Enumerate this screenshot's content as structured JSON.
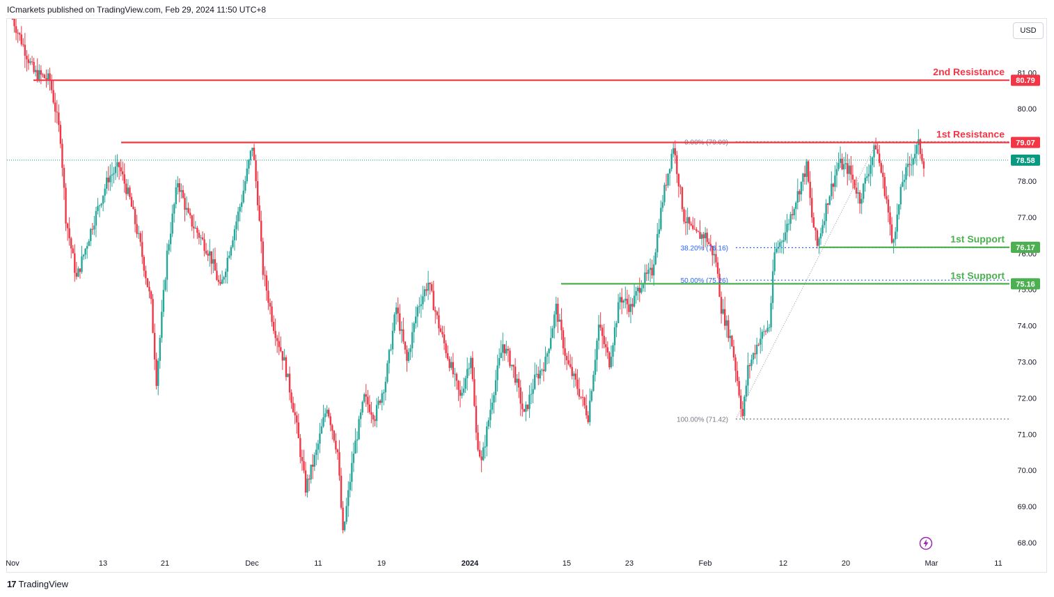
{
  "header": {
    "attribution": "ICmarkets published on TradingView.com, Feb 29, 2024 11:50 UTC+8"
  },
  "toolbar": {
    "currency": "USD"
  },
  "footer": {
    "brand": "TradingView",
    "logo_text": "17"
  },
  "icons": {
    "flash": "lightning-icon"
  },
  "colors": {
    "up": "#26a69a",
    "down": "#f23645",
    "resistance": "#f23645",
    "support": "#4caf50",
    "current": "#089981",
    "fib": "#2962ff",
    "text_muted": "#787b86"
  },
  "chart_data": {
    "type": "candlestick",
    "symbol_currency": "USD",
    "ylim": [
      67.6,
      81.7
    ],
    "y_ticks": [
      "68.00",
      "69.00",
      "70.00",
      "71.00",
      "72.00",
      "73.00",
      "74.00",
      "75.00",
      "76.00",
      "77.00",
      "78.00",
      "79.00",
      "80.00",
      "81.00"
    ],
    "x_ticks": [
      "Nov",
      "13",
      "21",
      "Dec",
      "11",
      "19",
      "2024",
      "15",
      "23",
      "Feb",
      "12",
      "20",
      "Mar",
      "11"
    ],
    "current_price": "78.58",
    "levels": [
      {
        "name": "2nd Resistance",
        "value": "80.79",
        "role": "resistance"
      },
      {
        "name": "1st Resistance",
        "value": "79.07",
        "role": "resistance"
      },
      {
        "name": "1st Support",
        "value": "76.17",
        "role": "support"
      },
      {
        "name": "1st Support",
        "value": "75.16",
        "role": "support"
      }
    ],
    "fibonacci": [
      {
        "label": "0.00% (79.09)",
        "value": 79.09
      },
      {
        "label": "38.20% (76.16)",
        "value": 76.16
      },
      {
        "label": "50.00% (75.26)",
        "value": 75.26
      },
      {
        "label": "100.00% (71.42)",
        "value": 71.42
      }
    ],
    "path": [
      [
        0,
        82.5
      ],
      [
        4,
        81.0
      ],
      [
        7,
        80.8
      ],
      [
        9,
        79.2
      ],
      [
        10,
        77.0
      ],
      [
        12,
        75.3
      ],
      [
        15,
        76.8
      ],
      [
        18,
        78.1
      ],
      [
        20,
        78.4
      ],
      [
        22,
        77.5
      ],
      [
        24,
        76.2
      ],
      [
        26,
        74.6
      ],
      [
        27,
        72.5
      ],
      [
        29,
        76.0
      ],
      [
        31,
        78.0
      ],
      [
        33,
        77.0
      ],
      [
        35,
        76.5
      ],
      [
        37,
        76.0
      ],
      [
        39,
        75.0
      ],
      [
        41,
        76.3
      ],
      [
        43,
        77.5
      ],
      [
        45,
        79.0
      ],
      [
        46,
        77.5
      ],
      [
        47,
        75.5
      ],
      [
        49,
        74.0
      ],
      [
        51,
        73.0
      ],
      [
        53,
        71.5
      ],
      [
        55,
        69.5
      ],
      [
        57,
        70.5
      ],
      [
        59,
        71.8
      ],
      [
        61,
        70.5
      ],
      [
        62,
        68.2
      ],
      [
        64,
        70.5
      ],
      [
        66,
        72.0
      ],
      [
        68,
        71.5
      ],
      [
        70,
        72.5
      ],
      [
        72,
        74.5
      ],
      [
        74,
        73.0
      ],
      [
        76,
        74.5
      ],
      [
        78,
        75.2
      ],
      [
        80,
        74.0
      ],
      [
        82,
        73.0
      ],
      [
        84,
        72.0
      ],
      [
        86,
        73.2
      ],
      [
        87,
        71.0
      ],
      [
        88,
        70.2
      ],
      [
        90,
        72.0
      ],
      [
        92,
        73.5
      ],
      [
        94,
        72.8
      ],
      [
        96,
        71.5
      ],
      [
        98,
        72.5
      ],
      [
        100,
        73.0
      ],
      [
        102,
        74.5
      ],
      [
        104,
        73.0
      ],
      [
        106,
        72.3
      ],
      [
        108,
        71.5
      ],
      [
        110,
        74.0
      ],
      [
        112,
        73.0
      ],
      [
        114,
        74.8
      ],
      [
        116,
        74.5
      ],
      [
        118,
        75.2
      ],
      [
        120,
        75.5
      ],
      [
        122,
        77.5
      ],
      [
        124,
        79.0
      ],
      [
        126,
        77.0
      ],
      [
        128,
        76.5
      ],
      [
        130,
        76.5
      ],
      [
        132,
        75.8
      ],
      [
        133,
        74.5
      ],
      [
        135,
        73.5
      ],
      [
        136,
        72.5
      ],
      [
        137,
        71.5
      ],
      [
        138,
        72.8
      ],
      [
        140,
        73.6
      ],
      [
        142,
        74.0
      ],
      [
        143,
        76.0
      ],
      [
        145,
        76.6
      ],
      [
        147,
        77.5
      ],
      [
        149,
        78.4
      ],
      [
        150,
        77.0
      ],
      [
        151,
        76.2
      ],
      [
        153,
        77.5
      ],
      [
        155,
        78.5
      ],
      [
        157,
        78.3
      ],
      [
        159,
        77.5
      ],
      [
        161,
        78.5
      ],
      [
        162,
        79.0
      ],
      [
        164,
        77.5
      ],
      [
        165,
        76.3
      ],
      [
        166,
        77.0
      ],
      [
        167,
        78.0
      ],
      [
        169,
        78.7
      ],
      [
        170,
        79.0
      ],
      [
        171,
        78.5
      ]
    ]
  }
}
